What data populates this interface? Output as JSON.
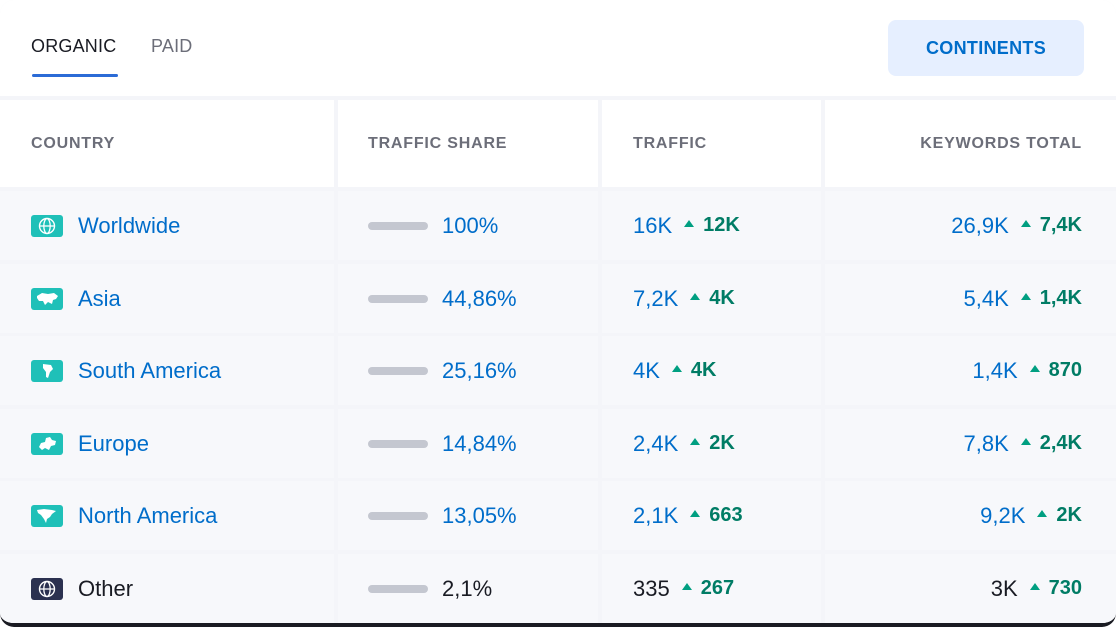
{
  "tabs": [
    {
      "label": "ORGANIC",
      "active": true
    },
    {
      "label": "PAID",
      "active": false
    }
  ],
  "continents_button": "CONTINENTS",
  "columns": [
    "COUNTRY",
    "TRAFFIC SHARE",
    "TRAFFIC",
    "KEYWORDS TOTAL"
  ],
  "colors": {
    "accent": "#006dca",
    "positive": "#007c65",
    "icon_teal": "#1fc0b8",
    "icon_dark": "#2b3150"
  },
  "rows": [
    {
      "region": "Worldwide",
      "icon": "globe-icon",
      "share": "100%",
      "share_value": 100,
      "traffic": "16K",
      "traffic_delta": "12K",
      "keywords": "26,9K",
      "keywords_delta": "7,4K"
    },
    {
      "region": "Asia",
      "icon": "asia-map-icon",
      "share": "44,86%",
      "share_value": 44.86,
      "traffic": "7,2K",
      "traffic_delta": "4K",
      "keywords": "5,4K",
      "keywords_delta": "1,4K"
    },
    {
      "region": "South America",
      "icon": "south-america-map-icon",
      "share": "25,16%",
      "share_value": 25.16,
      "traffic": "4K",
      "traffic_delta": "4K",
      "keywords": "1,4K",
      "keywords_delta": "870"
    },
    {
      "region": "Europe",
      "icon": "europe-map-icon",
      "share": "14,84%",
      "share_value": 14.84,
      "traffic": "2,4K",
      "traffic_delta": "2K",
      "keywords": "7,8K",
      "keywords_delta": "2,4K"
    },
    {
      "region": "North America",
      "icon": "north-america-map-icon",
      "share": "13,05%",
      "share_value": 13.05,
      "traffic": "2,1K",
      "traffic_delta": "663",
      "keywords": "9,2K",
      "keywords_delta": "2K"
    },
    {
      "region": "Other",
      "icon": "globe-dark-icon",
      "share": "2,1%",
      "share_value": 2.1,
      "traffic": "335",
      "traffic_delta": "267",
      "keywords": "3K",
      "keywords_delta": "730"
    }
  ]
}
